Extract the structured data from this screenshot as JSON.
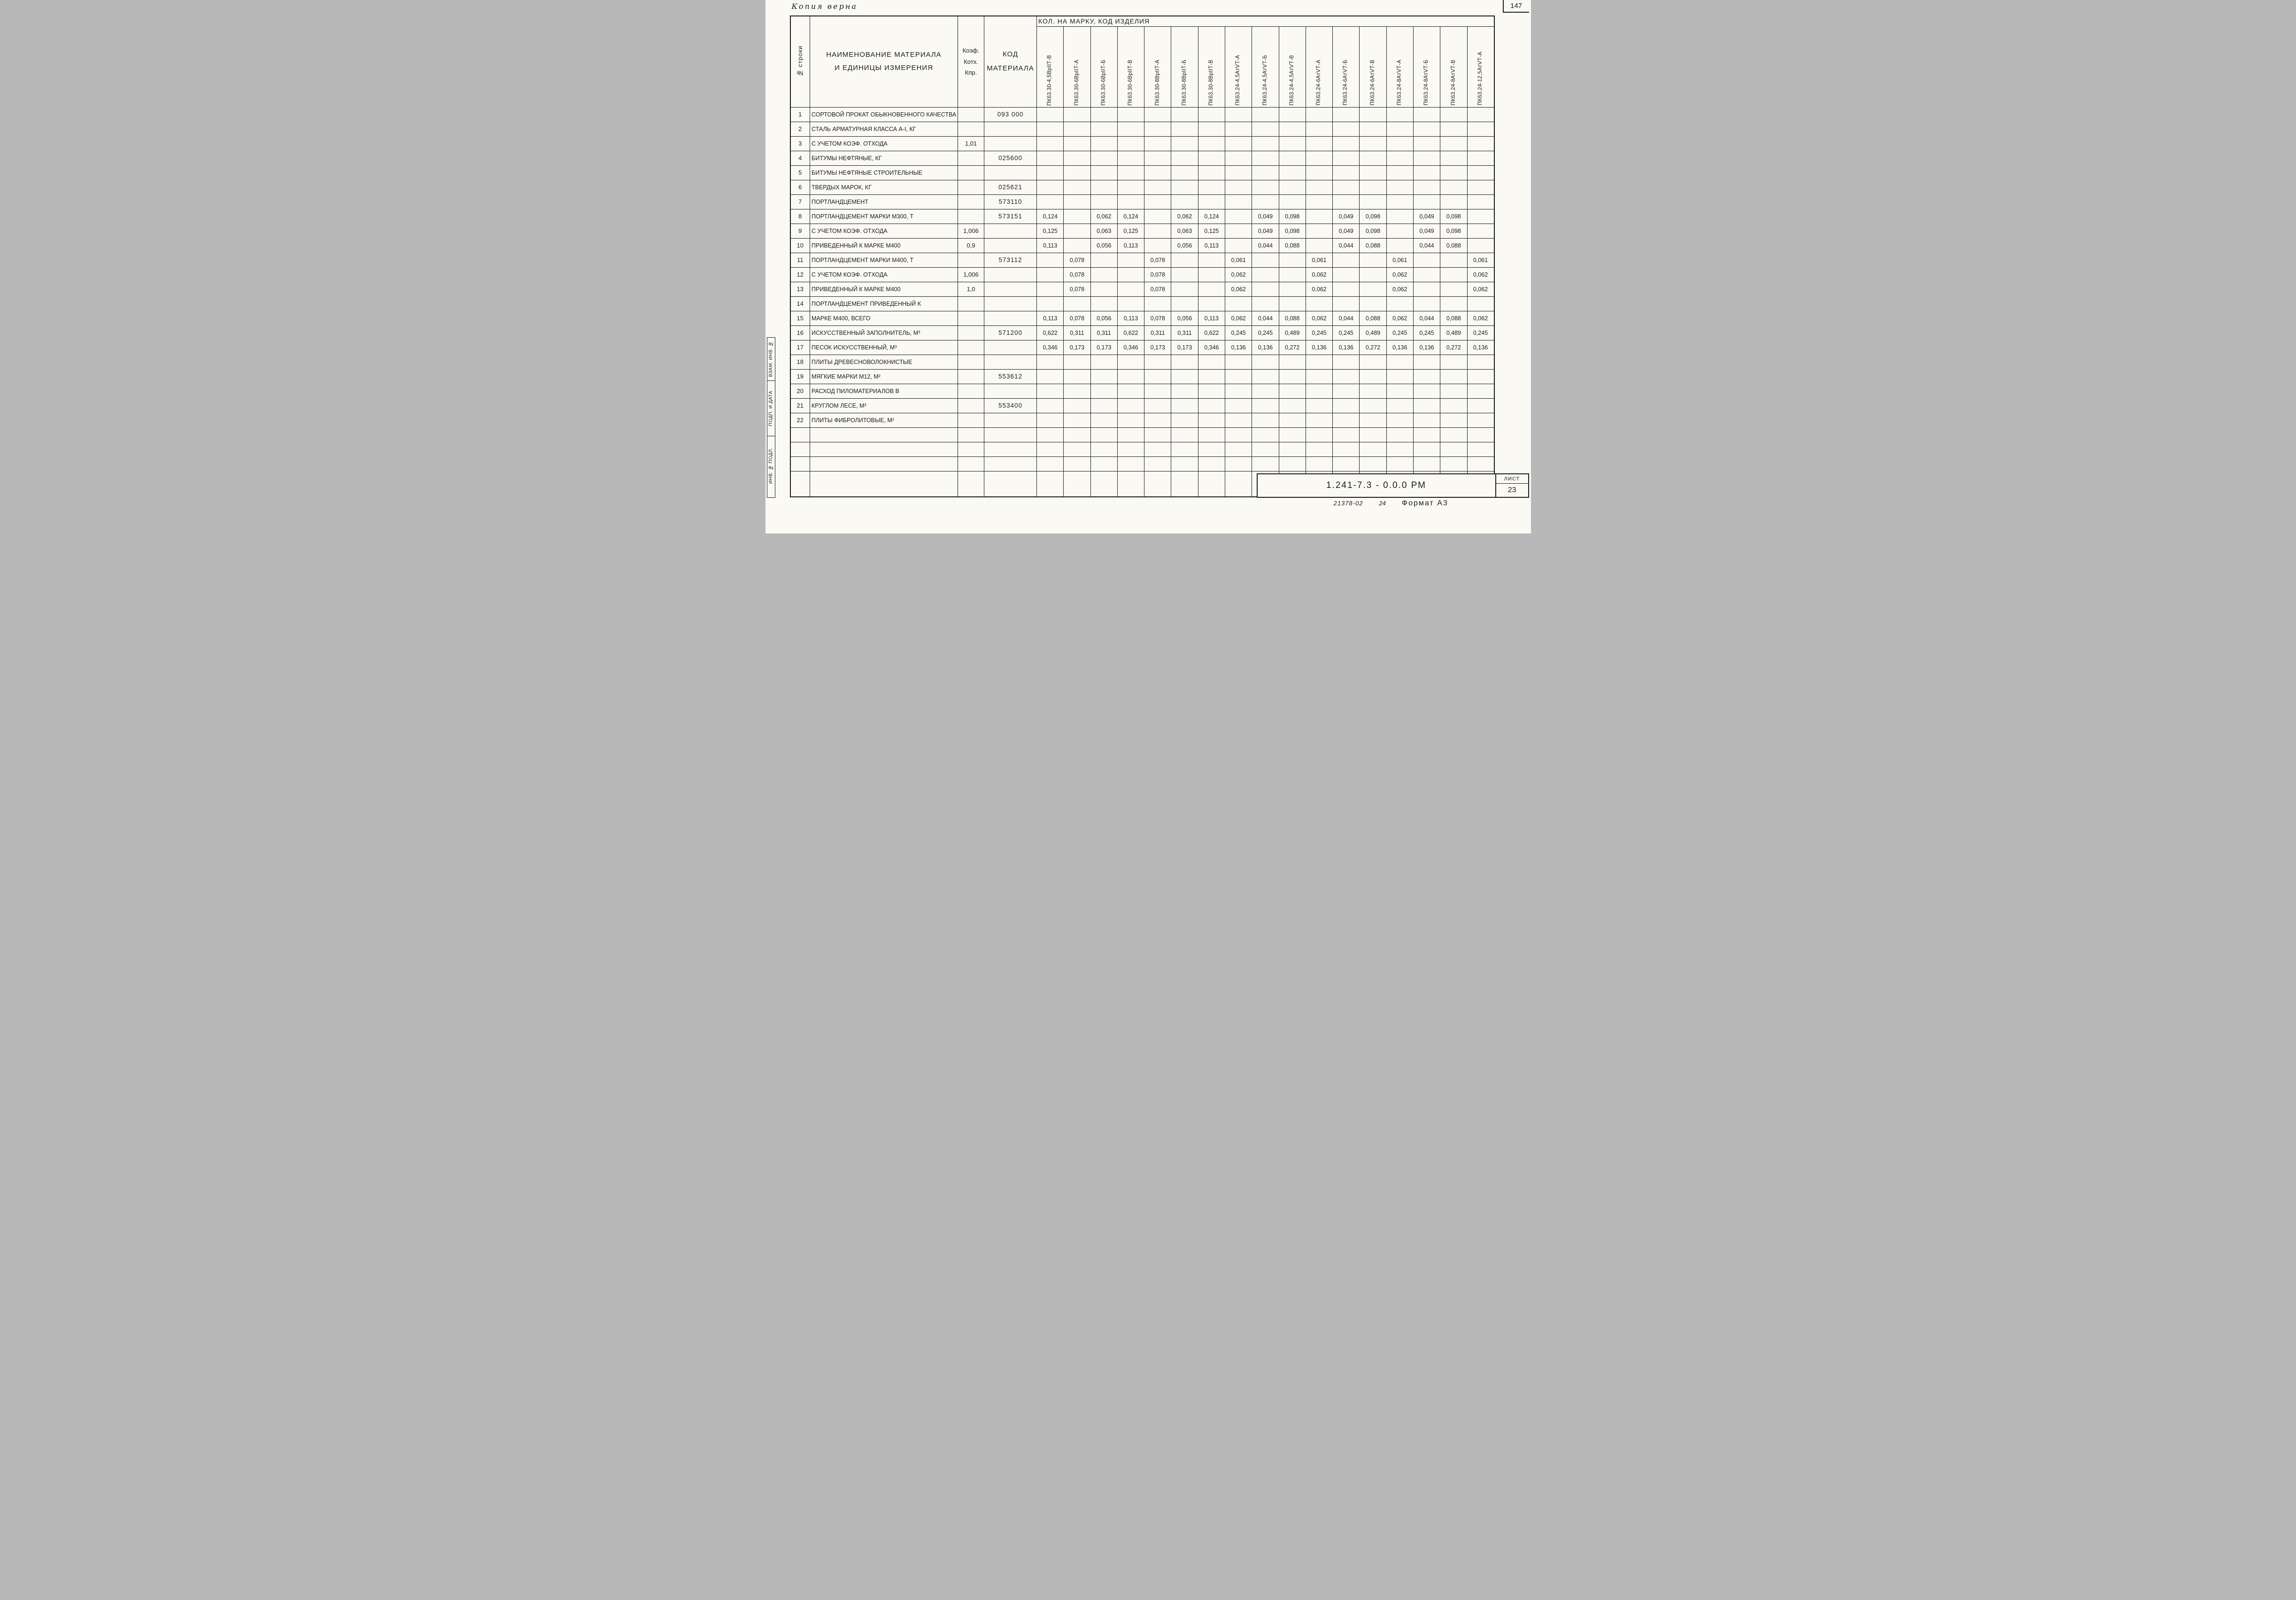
{
  "page": {
    "copy_stamp": "Копия верна",
    "page_number": "147",
    "side_stamp": {
      "cells": [
        "ВЗАМ. ИНВ. №",
        "ПОДП. И ДАТА",
        "ИНВ. № ПОДЛ."
      ]
    },
    "title_block": {
      "doc_number": "1.241-7.3 - 0.0.0 РМ",
      "sheet_label": "ЛИСТ",
      "sheet_number": "23"
    },
    "footer": {
      "order_number": "21378-02",
      "count": "24",
      "format": "Формат А3"
    }
  },
  "table": {
    "header": {
      "row_col": "№ строки",
      "name_col": "НАИМЕНОВАНИЕ  МАТЕРИАЛА\nИ ЕДИНИЦЫ  ИЗМЕРЕНИЯ",
      "coef_col": "Коэф.\nКотх.\nКпр.",
      "code_col": "КОД\nМАТЕРИАЛА",
      "span_header": "КОЛ. НА МАРКУ,  КОД  ИЗДЕЛИЯ",
      "marks": [
        "ПК63.30-4,5ВрIIТ-В",
        "ПК63.30-6ВрIIТ-А",
        "ПК63.30-6ВрIIТ-Б",
        "ПК63.30-6ВрIIТ-В",
        "ПК63.30-8ВрIIТ-А",
        "ПК63.30-8ВрIIТ-Б",
        "ПК63.30-8ВрIIТ-В",
        "ПК63.24-4,5АтVТ-А",
        "ПК63.24-4,5АтVТ-Б",
        "ПК63.24-4,5АтVТ-В",
        "ПК63.24-6АтVТ-А",
        "ПК63.24-6АтVТ-Б",
        "ПК63.24-6АтVТ-В",
        "ПК63.24-8АтVТ-А",
        "ПК63.24-8АтVТ-Б",
        "ПК63.24-8АтVТ-В",
        "ПК63.24-12,5АтVТ-А"
      ]
    },
    "rows": [
      {
        "n": "1",
        "name": "СОРТОВОЙ ПРОКАТ ОБЫКНОВЕННОГО КАЧЕСТВА",
        "coef": "",
        "code": "093 000",
        "values": [
          "",
          "",
          "",
          "",
          "",
          "",
          "",
          "",
          "",
          "",
          "",
          "",
          "",
          "",
          "",
          "",
          ""
        ]
      },
      {
        "n": "2",
        "name": "СТАЛЬ АРМАТУРНАЯ КЛАССА А-I, КГ",
        "coef": "",
        "code": "",
        "values": [
          "",
          "",
          "",
          "",
          "",
          "",
          "",
          "",
          "",
          "",
          "",
          "",
          "",
          "",
          "",
          "",
          ""
        ]
      },
      {
        "n": "3",
        "name": "С УЧЕТОМ КОЭФ. ОТХОДА",
        "coef": "1,01",
        "code": "",
        "values": [
          "",
          "",
          "",
          "",
          "",
          "",
          "",
          "",
          "",
          "",
          "",
          "",
          "",
          "",
          "",
          "",
          ""
        ]
      },
      {
        "n": "4",
        "name": "БИТУМЫ НЕФТЯНЫЕ, КГ",
        "coef": "",
        "code": "025600",
        "values": [
          "",
          "",
          "",
          "",
          "",
          "",
          "",
          "",
          "",
          "",
          "",
          "",
          "",
          "",
          "",
          "",
          ""
        ]
      },
      {
        "n": "5",
        "name": "БИТУМЫ НЕФТЯНЫЕ СТРОИТЕЛЬНЫЕ",
        "coef": "",
        "code": "",
        "values": [
          "",
          "",
          "",
          "",
          "",
          "",
          "",
          "",
          "",
          "",
          "",
          "",
          "",
          "",
          "",
          "",
          ""
        ]
      },
      {
        "n": "6",
        "name": "ТВЕРДЫХ МАРОК, КГ",
        "coef": "",
        "code": "025621",
        "values": [
          "",
          "",
          "",
          "",
          "",
          "",
          "",
          "",
          "",
          "",
          "",
          "",
          "",
          "",
          "",
          "",
          ""
        ]
      },
      {
        "n": "7",
        "name": "ПОРТЛАНДЦЕМЕНТ",
        "coef": "",
        "code": "573110",
        "values": [
          "",
          "",
          "",
          "",
          "",
          "",
          "",
          "",
          "",
          "",
          "",
          "",
          "",
          "",
          "",
          "",
          ""
        ]
      },
      {
        "n": "8",
        "name": "ПОРТЛАНДЦЕМЕНТ МАРКИ М300, Т",
        "coef": "",
        "code": "573151",
        "values": [
          "0,124",
          "",
          "0,062",
          "0,124",
          "",
          "0,062",
          "0,124",
          "",
          "0,049",
          "0,098",
          "",
          "0,049",
          "0,098",
          "",
          "0,049",
          "0,098",
          ""
        ]
      },
      {
        "n": "9",
        "name": "С УЧЕТОМ КОЭФ. ОТХОДА",
        "coef": "1,006",
        "code": "",
        "values": [
          "0,125",
          "",
          "0,063",
          "0,125",
          "",
          "0,063",
          "0,125",
          "",
          "0,049",
          "0,098",
          "",
          "0,049",
          "0,098",
          "",
          "0,049",
          "0,098",
          ""
        ]
      },
      {
        "n": "10",
        "name": "ПРИВЕДЕННЫЙ К МАРКЕ М400",
        "coef": "0,9",
        "code": "",
        "values": [
          "0,113",
          "",
          "0,056",
          "0,113",
          "",
          "0,056",
          "0,113",
          "",
          "0,044",
          "0,088",
          "",
          "0,044",
          "0,088",
          "",
          "0,044",
          "0,088",
          ""
        ]
      },
      {
        "n": "11",
        "name": "ПОРТЛАНДЦЕМЕНТ МАРКИ М400, Т",
        "coef": "",
        "code": "573112",
        "values": [
          "",
          "0,078",
          "",
          "",
          "0,078",
          "",
          "",
          "0,061",
          "",
          "",
          "0,061",
          "",
          "",
          "0,061",
          "",
          "",
          "0,061"
        ]
      },
      {
        "n": "12",
        "name": "С УЧЕТОМ КОЭФ. ОТХОДА",
        "coef": "1,006",
        "code": "",
        "values": [
          "",
          "0,078",
          "",
          "",
          "0,078",
          "",
          "",
          "0,062",
          "",
          "",
          "0,062",
          "",
          "",
          "0,062",
          "",
          "",
          "0,062"
        ]
      },
      {
        "n": "13",
        "name": "ПРИВЕДЕННЫЙ К МАРКЕ М400",
        "coef": "1,0",
        "code": "",
        "values": [
          "",
          "0,078",
          "",
          "",
          "0,078",
          "",
          "",
          "0,062",
          "",
          "",
          "0,062",
          "",
          "",
          "0,062",
          "",
          "",
          "0,062"
        ]
      },
      {
        "n": "14",
        "name": "ПОРТЛАНДЦЕМЕНТ ПРИВЕДЕННЫЙ К",
        "coef": "",
        "code": "",
        "values": [
          "",
          "",
          "",
          "",
          "",
          "",
          "",
          "",
          "",
          "",
          "",
          "",
          "",
          "",
          "",
          "",
          ""
        ]
      },
      {
        "n": "15",
        "name": "МАРКЕ  М400, ВСЕГО",
        "coef": "",
        "code": "",
        "values": [
          "0,113",
          "0,078",
          "0,056",
          "0,113",
          "0,078",
          "0,056",
          "0,113",
          "0,062",
          "0,044",
          "0,088",
          "0,062",
          "0,044",
          "0,088",
          "0,062",
          "0,044",
          "0,088",
          "0,062"
        ]
      },
      {
        "n": "16",
        "name": "ИСКУССТВЕННЫЙ  ЗАПОЛНИТЕЛЬ, М³",
        "coef": "",
        "code": "571200",
        "values": [
          "0,622",
          "0,311",
          "0,311",
          "0,622",
          "0,311",
          "0,311",
          "0,622",
          "0,245",
          "0,245",
          "0,489",
          "0,245",
          "0,245",
          "0,489",
          "0,245",
          "0,245",
          "0,489",
          "0,245"
        ]
      },
      {
        "n": "17",
        "name": "ПЕСОК ИСКУССТВЕННЫЙ, М³",
        "coef": "",
        "code": "",
        "values": [
          "0,346",
          "0,173",
          "0,173",
          "0,346",
          "0,173",
          "0,173",
          "0,346",
          "0,136",
          "0,136",
          "0,272",
          "0,136",
          "0,136",
          "0,272",
          "0,136",
          "0,136",
          "0,272",
          "0,136"
        ]
      },
      {
        "n": "18",
        "name": "ПЛИТЫ ДРЕВЕСНОВОЛОКНИСТЫЕ",
        "coef": "",
        "code": "",
        "values": [
          "",
          "",
          "",
          "",
          "",
          "",
          "",
          "",
          "",
          "",
          "",
          "",
          "",
          "",
          "",
          "",
          ""
        ]
      },
      {
        "n": "19",
        "name": "МЯГКИЕ  МАРКИ  М12, М²",
        "coef": "",
        "code": "553612",
        "values": [
          "",
          "",
          "",
          "",
          "",
          "",
          "",
          "",
          "",
          "",
          "",
          "",
          "",
          "",
          "",
          "",
          ""
        ]
      },
      {
        "n": "20",
        "name": "РАСХОД  ПИЛОМАТЕРИАЛОВ  В",
        "coef": "",
        "code": "",
        "values": [
          "",
          "",
          "",
          "",
          "",
          "",
          "",
          "",
          "",
          "",
          "",
          "",
          "",
          "",
          "",
          "",
          ""
        ]
      },
      {
        "n": "21",
        "name": "КРУГЛОМ  ЛЕСЕ, М³",
        "coef": "",
        "code": "553400",
        "values": [
          "",
          "",
          "",
          "",
          "",
          "",
          "",
          "",
          "",
          "",
          "",
          "",
          "",
          "",
          "",
          "",
          ""
        ]
      },
      {
        "n": "22",
        "name": "ПЛИТЫ  ФИБРОЛИТОВЫЕ, М²",
        "coef": "",
        "code": "",
        "values": [
          "",
          "",
          "",
          "",
          "",
          "",
          "",
          "",
          "",
          "",
          "",
          "",
          "",
          "",
          "",
          "",
          ""
        ]
      },
      {
        "n": "",
        "name": "",
        "coef": "",
        "code": "",
        "values": [
          "",
          "",
          "",
          "",
          "",
          "",
          "",
          "",
          "",
          "",
          "",
          "",
          "",
          "",
          "",
          "",
          ""
        ]
      },
      {
        "n": "",
        "name": "",
        "coef": "",
        "code": "",
        "values": [
          "",
          "",
          "",
          "",
          "",
          "",
          "",
          "",
          "",
          "",
          "",
          "",
          "",
          "",
          "",
          "",
          ""
        ]
      },
      {
        "n": "",
        "name": "",
        "coef": "",
        "code": "",
        "values": [
          "",
          "",
          "",
          "",
          "",
          "",
          "",
          "",
          "",
          "",
          "",
          "",
          "",
          "",
          "",
          "",
          ""
        ]
      },
      {
        "n": "",
        "name": "",
        "coef": "",
        "code": "",
        "values": [
          "",
          "",
          "",
          "",
          "",
          "",
          "",
          "",
          "",
          "",
          "",
          "",
          "",
          "",
          "",
          "",
          ""
        ],
        "tall": true
      }
    ]
  }
}
